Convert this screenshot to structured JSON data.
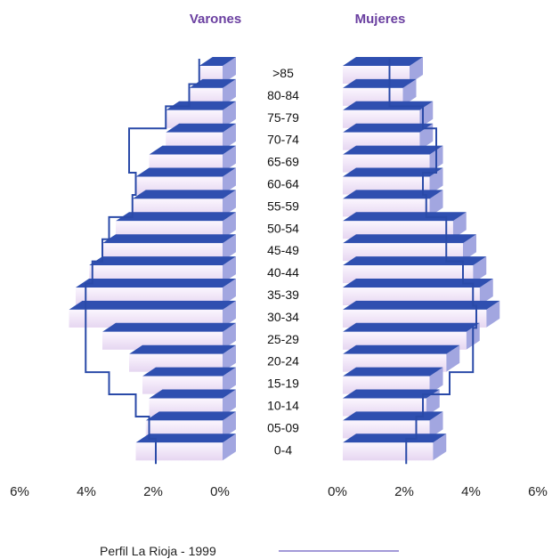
{
  "chart_data": {
    "type": "bar",
    "subtype": "population-pyramid",
    "left_title": "Varones",
    "right_title": "Mujeres",
    "categories": [
      ">85",
      "80-84",
      "75-79",
      "70-74",
      "65-69",
      "60-64",
      "55-59",
      "50-54",
      "45-49",
      "40-44",
      "35-39",
      "30-34",
      "25-29",
      "20-24",
      "15-19",
      "10-14",
      "05-09",
      "0-4"
    ],
    "series": [
      {
        "name": "Varones",
        "side": "left",
        "values": [
          0.7,
          1.0,
          1.7,
          1.7,
          2.2,
          2.6,
          2.7,
          3.2,
          3.6,
          4.0,
          4.4,
          4.6,
          3.6,
          2.8,
          2.4,
          2.2,
          2.3,
          2.6
        ]
      },
      {
        "name": "Mujeres",
        "side": "right",
        "values": [
          2.0,
          1.8,
          2.3,
          2.3,
          2.6,
          2.6,
          2.6,
          3.3,
          3.6,
          3.9,
          4.1,
          4.3,
          3.7,
          3.1,
          2.6,
          2.5,
          2.6,
          2.7
        ]
      },
      {
        "name": "Perfil La Rioja - 1999",
        "side": "left",
        "style": "outline",
        "values": [
          0.7,
          1.0,
          1.7,
          2.8,
          2.8,
          2.6,
          2.7,
          3.4,
          3.6,
          3.9,
          4.1,
          4.1,
          4.1,
          4.1,
          3.4,
          2.6,
          2.2,
          2.0
        ]
      },
      {
        "name": "Perfil La Rioja - 1999",
        "side": "right",
        "style": "outline",
        "values": [
          1.4,
          1.4,
          2.4,
          2.8,
          2.8,
          2.4,
          2.5,
          3.1,
          3.1,
          3.6,
          3.9,
          4.0,
          3.9,
          3.9,
          3.2,
          2.4,
          2.2,
          1.9
        ]
      }
    ],
    "x_ticks_left": [
      "6%",
      "4%",
      "2%",
      "0%"
    ],
    "x_ticks_right": [
      "0%",
      "2%",
      "4%",
      "6%"
    ],
    "xlim": [
      0,
      6
    ],
    "legend": {
      "label": "Perfil La Rioja - 1999",
      "position": "bottom"
    },
    "colors": {
      "bar_fill_light": "#fbf6fe",
      "bar_fill_dark": "#e6d6f1",
      "bar_top": "#2f4fb0",
      "bar_side": "#a2a6e0",
      "outline": "#2a4aa8",
      "header": "#6a3fa0",
      "legend_line": "#a39ad8"
    }
  }
}
